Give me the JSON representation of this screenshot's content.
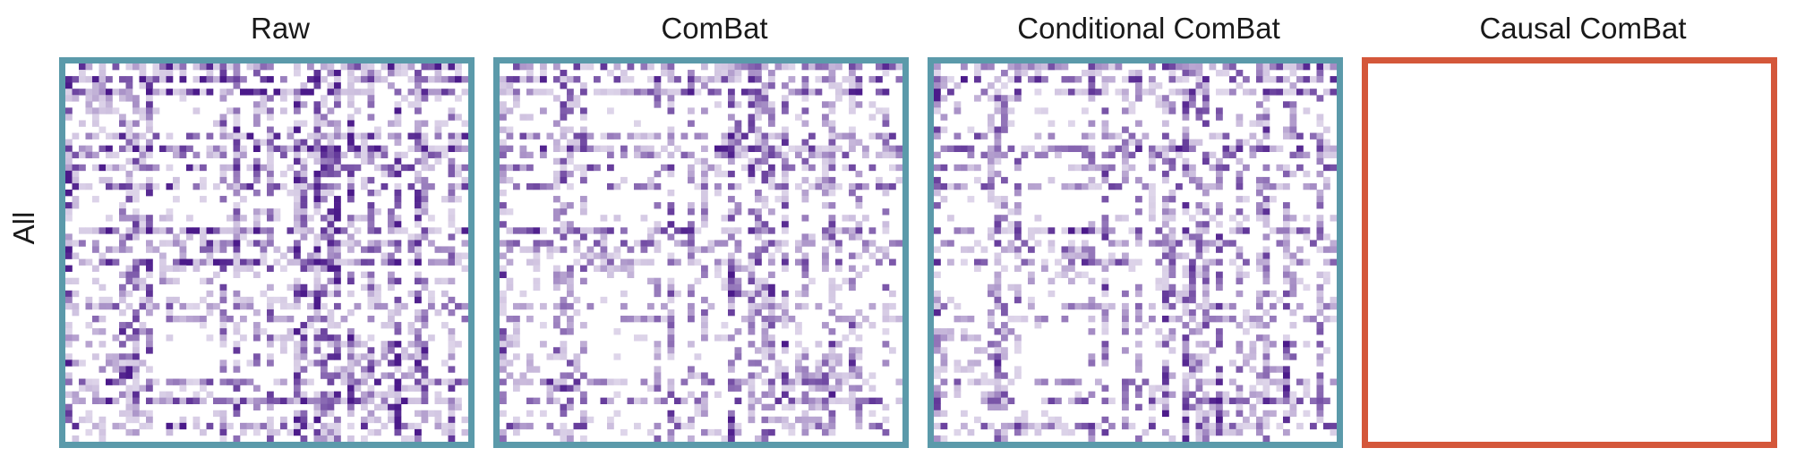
{
  "row_label": "All",
  "chart_data": {
    "type": "heatmap",
    "row_labels": [
      "All"
    ],
    "panels": [
      {
        "title": "Raw",
        "border_color": "#5b9aaa",
        "empty": false,
        "seed": 11,
        "noise": 1.0
      },
      {
        "title": "ComBat",
        "border_color": "#5b9aaa",
        "empty": false,
        "seed": 23,
        "noise": 0.85
      },
      {
        "title": "Conditional ComBat",
        "border_color": "#5b9aaa",
        "empty": false,
        "seed": 37,
        "noise": 0.85
      },
      {
        "title": "Causal ComBat",
        "border_color": "#d4573a",
        "empty": true,
        "seed": 0,
        "noise": 0
      }
    ],
    "colormap": {
      "low": "#ffffff",
      "high": "#4b1a8a"
    },
    "grid": false,
    "legend": "none"
  }
}
